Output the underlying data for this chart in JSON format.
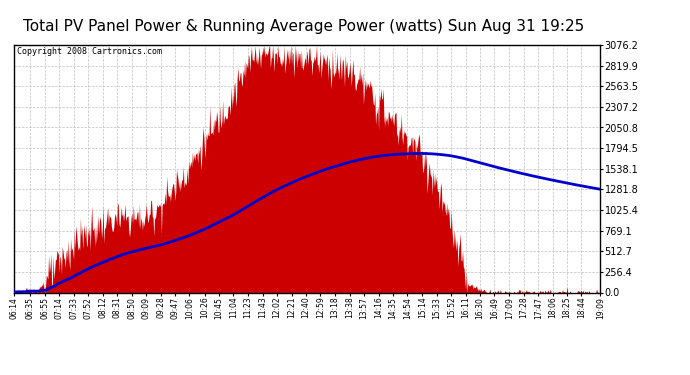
{
  "title": "Total PV Panel Power & Running Average Power (watts) Sun Aug 31 19:25",
  "copyright": "Copyright 2008 Cartronics.com",
  "y_ticks": [
    0.0,
    256.4,
    512.7,
    769.1,
    1025.4,
    1281.8,
    1538.1,
    1794.5,
    2050.8,
    2307.2,
    2563.5,
    2819.9,
    3076.2
  ],
  "x_labels": [
    "06:14",
    "06:35",
    "06:55",
    "07:14",
    "07:33",
    "07:52",
    "08:12",
    "08:31",
    "08:50",
    "09:09",
    "09:28",
    "09:47",
    "10:06",
    "10:26",
    "10:45",
    "11:04",
    "11:23",
    "11:43",
    "12:02",
    "12:21",
    "12:40",
    "12:59",
    "13:18",
    "13:38",
    "13:57",
    "14:16",
    "14:35",
    "14:54",
    "15:14",
    "15:33",
    "15:52",
    "16:11",
    "16:30",
    "16:49",
    "17:09",
    "17:28",
    "17:47",
    "18:06",
    "18:25",
    "18:44",
    "19:09"
  ],
  "y_max": 3076.2,
  "y_min": 0.0,
  "title_fontsize": 11,
  "copyright_fontsize": 6,
  "background_color": "#ffffff",
  "plot_bg_color": "#ffffff",
  "grid_color": "#bbbbbb",
  "fill_color": "#cc0000",
  "line_color": "#0000cc",
  "border_color": "#000000"
}
